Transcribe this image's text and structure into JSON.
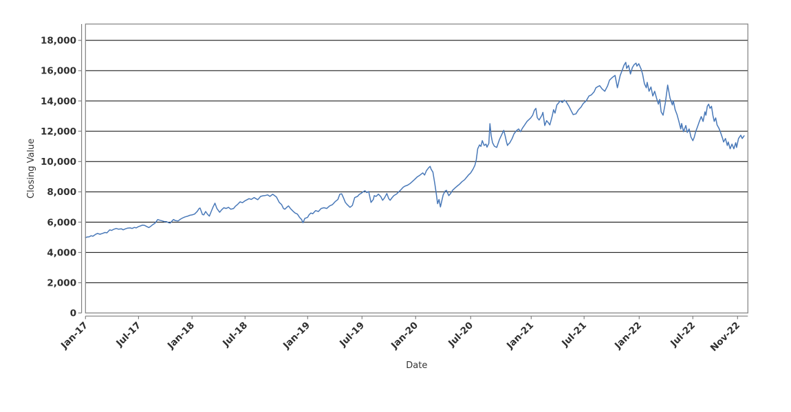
{
  "figure": {
    "background": "#ffffff",
    "plot_border_color": "#7f7f7f",
    "axis_line_color": "#7f7f7f",
    "grid_color": "#000000",
    "tick_label_color": "#2f2f2f",
    "series_color": "#4878b8"
  },
  "chart_data": {
    "type": "line",
    "title": "",
    "xlabel": "Date",
    "ylabel": "Closing Value",
    "legend": "none",
    "grid": "horizontal-black",
    "ylim": [
      0,
      19080
    ],
    "y_ticks": [
      0,
      2000,
      4000,
      6000,
      8000,
      10000,
      12000,
      14000,
      16000,
      18000
    ],
    "x_axis_span_months": 70,
    "x_ticks": {
      "positions_months_since_jan17": [
        0,
        5.69,
        11.44,
        17.13,
        23.85,
        29.68,
        35.44,
        41.35,
        47.85,
        53.53,
        59.44,
        65.2,
        70.0
      ],
      "labels": [
        "Jan-17",
        "Jul-17",
        "Jan-18",
        "Jul-18",
        "Jan-19",
        "Jul-19",
        "Jan-20",
        "Jul-20",
        "Jan-21",
        "Jul-21",
        "Jan-22",
        "Jul-22",
        "Nov-22"
      ]
    },
    "series": [
      {
        "name": "Closing Value",
        "color": "#4878b8",
        "x_months_since_jan17": [
          0,
          0.2,
          0.4,
          0.6,
          0.8,
          1.1,
          1.3,
          1.55,
          1.85,
          2.1,
          2.3,
          2.6,
          2.8,
          3.0,
          3.3,
          3.55,
          3.85,
          4.05,
          4.3,
          4.5,
          4.8,
          5.0,
          5.25,
          5.45,
          5.7,
          5.9,
          6.1,
          6.35,
          6.6,
          6.8,
          7.0,
          7.25,
          7.45,
          7.75,
          8.0,
          8.25,
          8.5,
          8.7,
          8.95,
          9.1,
          9.3,
          9.45,
          9.65,
          9.95,
          10.2,
          10.5,
          10.7,
          10.95,
          11.2,
          11.45,
          11.7,
          12.0,
          12.2,
          12.3,
          12.55,
          12.7,
          12.9,
          13.1,
          13.3,
          13.5,
          13.7,
          13.9,
          14.1,
          14.4,
          14.6,
          14.85,
          15.1,
          15.35,
          15.6,
          15.9,
          16.1,
          16.3,
          16.6,
          16.85,
          17.1,
          17.35,
          17.55,
          17.8,
          18.1,
          18.3,
          18.5,
          18.8,
          19.05,
          19.3,
          19.55,
          19.8,
          20.1,
          20.3,
          20.5,
          20.8,
          21.05,
          21.25,
          21.4,
          21.65,
          21.8,
          22.0,
          22.3,
          22.5,
          22.75,
          23.0,
          23.2,
          23.35,
          23.55,
          23.7,
          23.85,
          24.0,
          24.2,
          24.4,
          24.7,
          25.0,
          25.3,
          25.6,
          25.9,
          26.2,
          26.5,
          26.8,
          27.1,
          27.3,
          27.5,
          27.7,
          27.9,
          28.1,
          28.4,
          28.65,
          28.9,
          29.2,
          29.4,
          29.6,
          29.75,
          30.0,
          30.2,
          30.4,
          30.65,
          30.9,
          31.0,
          31.2,
          31.45,
          31.7,
          31.9,
          32.1,
          32.35,
          32.55,
          32.7,
          32.9,
          33.1,
          33.4,
          33.6,
          33.8,
          34.1,
          34.3,
          34.55,
          34.85,
          35.05,
          35.3,
          35.6,
          35.9,
          36.2,
          36.4,
          36.6,
          36.85,
          37.0,
          37.1,
          37.3,
          37.5,
          37.65,
          37.8,
          37.95,
          38.1,
          38.25,
          38.4,
          38.6,
          38.75,
          39.0,
          39.2,
          39.4,
          39.65,
          39.95,
          40.15,
          40.4,
          40.7,
          40.9,
          41.1,
          41.35,
          41.6,
          41.8,
          41.95,
          42.1,
          42.3,
          42.45,
          42.6,
          42.8,
          43.0,
          43.1,
          43.3,
          43.42,
          43.55,
          43.7,
          43.9,
          44.15,
          44.3,
          44.45,
          44.65,
          44.9,
          45.05,
          45.2,
          45.3,
          45.4,
          45.55,
          45.8,
          46.0,
          46.3,
          46.5,
          46.7,
          46.9,
          47.1,
          47.4,
          47.8,
          48.0,
          48.2,
          48.35,
          48.5,
          48.7,
          49.0,
          49.1,
          49.3,
          49.5,
          49.7,
          49.85,
          50.1,
          50.25,
          50.4,
          50.6,
          50.8,
          50.95,
          51.2,
          51.4,
          51.6,
          51.9,
          52.1,
          52.35,
          52.65,
          52.9,
          53.2,
          53.4,
          53.5,
          53.75,
          54.05,
          54.3,
          54.6,
          54.8,
          55.0,
          55.2,
          55.45,
          55.75,
          56.05,
          56.25,
          56.55,
          56.85,
          57.1,
          57.4,
          57.6,
          57.8,
          58.0,
          58.1,
          58.3,
          58.5,
          58.7,
          58.9,
          59.1,
          59.2,
          59.4,
          59.65,
          59.8,
          60.0,
          60.2,
          60.3,
          60.5,
          60.7,
          60.9,
          61.1,
          61.3,
          61.5,
          61.65,
          61.8,
          62.0,
          62.25,
          62.5,
          62.75,
          63.0,
          63.1,
          63.3,
          63.5,
          63.7,
          63.9,
          64.0,
          64.2,
          64.45,
          64.6,
          64.8,
          65.0,
          65.2,
          65.35,
          65.5,
          65.7,
          65.9,
          66.1,
          66.3,
          66.5,
          66.6,
          66.75,
          66.9,
          67.05,
          67.2,
          67.35,
          67.5,
          67.65,
          67.8,
          68.0,
          68.15,
          68.4,
          68.5,
          68.7,
          68.9,
          69.0,
          69.2,
          69.4,
          69.6,
          69.8,
          69.9,
          70.1,
          70.35,
          70.5,
          70.7
        ],
        "values": [
          4980,
          5020,
          5030,
          5100,
          5070,
          5200,
          5250,
          5200,
          5260,
          5320,
          5290,
          5490,
          5450,
          5520,
          5580,
          5530,
          5560,
          5490,
          5560,
          5600,
          5620,
          5580,
          5650,
          5620,
          5710,
          5750,
          5800,
          5780,
          5700,
          5640,
          5720,
          5850,
          5920,
          6170,
          6120,
          6080,
          6030,
          6030,
          5960,
          5940,
          6080,
          6170,
          6100,
          6080,
          6200,
          6300,
          6350,
          6390,
          6450,
          6480,
          6530,
          6710,
          6900,
          6930,
          6500,
          6480,
          6700,
          6520,
          6400,
          6700,
          7000,
          7250,
          6900,
          6650,
          6800,
          6950,
          6900,
          6980,
          6850,
          6900,
          7050,
          7150,
          7340,
          7280,
          7400,
          7480,
          7550,
          7500,
          7620,
          7550,
          7480,
          7700,
          7740,
          7760,
          7800,
          7700,
          7840,
          7750,
          7660,
          7300,
          7160,
          6900,
          6850,
          7000,
          7070,
          6900,
          6710,
          6600,
          6530,
          6300,
          6170,
          5960,
          6250,
          6280,
          6320,
          6480,
          6600,
          6550,
          6760,
          6700,
          6900,
          6950,
          6900,
          7070,
          7150,
          7350,
          7500,
          7840,
          7870,
          7600,
          7300,
          7150,
          6980,
          7100,
          7620,
          7700,
          7840,
          7900,
          7980,
          8070,
          7950,
          8020,
          7300,
          7500,
          7750,
          7700,
          7850,
          7680,
          7440,
          7600,
          7890,
          7560,
          7440,
          7610,
          7750,
          7860,
          7980,
          8100,
          8300,
          8380,
          8430,
          8550,
          8660,
          8800,
          8980,
          9100,
          9250,
          9110,
          9400,
          9600,
          9680,
          9500,
          9300,
          8520,
          7900,
          7220,
          7500,
          7000,
          7400,
          7800,
          8050,
          8100,
          7750,
          7900,
          8100,
          8250,
          8400,
          8500,
          8660,
          8800,
          8950,
          9100,
          9250,
          9500,
          9750,
          10100,
          10840,
          11100,
          11000,
          11380,
          11060,
          11150,
          10950,
          11200,
          12500,
          11700,
          11240,
          11010,
          10930,
          11200,
          11470,
          11740,
          12060,
          11700,
          11290,
          11060,
          11150,
          11240,
          11520,
          11830,
          12060,
          12150,
          11970,
          12200,
          12380,
          12650,
          12880,
          13060,
          13400,
          13510,
          12900,
          12740,
          13060,
          13250,
          12380,
          12700,
          12550,
          12420,
          13000,
          13420,
          13200,
          13740,
          13880,
          14010,
          13900,
          14050,
          13950,
          13650,
          13400,
          13100,
          13150,
          13400,
          13600,
          13800,
          13870,
          14000,
          14330,
          14400,
          14600,
          14870,
          14950,
          15010,
          14800,
          14640,
          15000,
          15370,
          15550,
          15690,
          14870,
          15690,
          16000,
          16350,
          16550,
          16150,
          16350,
          15780,
          16200,
          16400,
          16500,
          16300,
          16460,
          16100,
          15780,
          15140,
          14870,
          15230,
          14640,
          14920,
          14330,
          14640,
          14190,
          13790,
          14100,
          13280,
          13060,
          13870,
          15050,
          14190,
          13740,
          14010,
          13420,
          13100,
          12650,
          12150,
          12510,
          11970,
          12380,
          11920,
          12150,
          11610,
          11380,
          11600,
          11970,
          12300,
          12650,
          12970,
          12650,
          13280,
          13060,
          13650,
          13790,
          13510,
          13650,
          13060,
          12650,
          12880,
          12420,
          12200,
          11970,
          11520,
          11290,
          11520,
          11060,
          11290,
          10840,
          11150,
          10840,
          11240,
          10930,
          11520,
          11740,
          11520,
          11700
        ]
      }
    ]
  }
}
